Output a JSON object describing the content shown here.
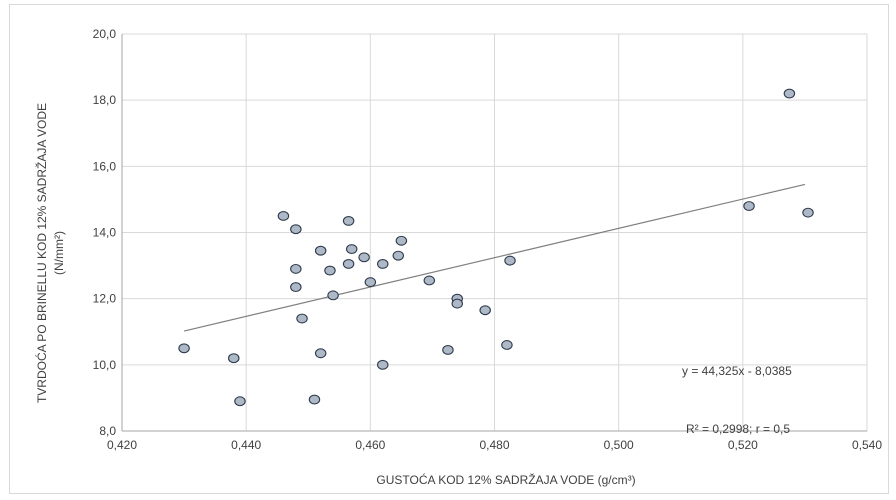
{
  "chart_data": {
    "type": "scatter",
    "xlabel": "GUSTOĆA KOD 12% SADRŽAJA VODE (g/cm³)",
    "ylabel": "TVRDOĆA PO BRINELLU KOD 12% SADRŽAJA VODE",
    "ylabel_unit": "(N/mm²)",
    "xlim": [
      0.42,
      0.54
    ],
    "ylim": [
      8.0,
      20.0
    ],
    "x_ticks": [
      0.42,
      0.44,
      0.46,
      0.48,
      0.5,
      0.52,
      0.54
    ],
    "x_tick_labels": [
      "0,420",
      "0,440",
      "0,460",
      "0,480",
      "0,500",
      "0,520",
      "0,540"
    ],
    "y_ticks": [
      8,
      10,
      12,
      14,
      16,
      18,
      20
    ],
    "y_tick_labels": [
      "8,0",
      "10,0",
      "12,0",
      "14,0",
      "16,0",
      "18,0",
      "20,0"
    ],
    "grid": true,
    "points": [
      {
        "x": 0.43,
        "y": 10.5
      },
      {
        "x": 0.438,
        "y": 10.2
      },
      {
        "x": 0.439,
        "y": 8.9
      },
      {
        "x": 0.446,
        "y": 14.5
      },
      {
        "x": 0.448,
        "y": 14.1
      },
      {
        "x": 0.448,
        "y": 12.9
      },
      {
        "x": 0.448,
        "y": 12.35
      },
      {
        "x": 0.449,
        "y": 11.4
      },
      {
        "x": 0.451,
        "y": 8.95
      },
      {
        "x": 0.452,
        "y": 13.45
      },
      {
        "x": 0.452,
        "y": 10.35
      },
      {
        "x": 0.4535,
        "y": 12.85
      },
      {
        "x": 0.454,
        "y": 12.1
      },
      {
        "x": 0.4565,
        "y": 14.35
      },
      {
        "x": 0.457,
        "y": 13.5
      },
      {
        "x": 0.4565,
        "y": 13.05
      },
      {
        "x": 0.459,
        "y": 13.25
      },
      {
        "x": 0.46,
        "y": 12.5
      },
      {
        "x": 0.462,
        "y": 13.05
      },
      {
        "x": 0.462,
        "y": 10.0
      },
      {
        "x": 0.4645,
        "y": 13.3
      },
      {
        "x": 0.465,
        "y": 13.75
      },
      {
        "x": 0.4695,
        "y": 12.55
      },
      {
        "x": 0.4725,
        "y": 10.45
      },
      {
        "x": 0.474,
        "y": 12.0
      },
      {
        "x": 0.474,
        "y": 11.85
      },
      {
        "x": 0.4785,
        "y": 11.65
      },
      {
        "x": 0.4825,
        "y": 13.15
      },
      {
        "x": 0.482,
        "y": 10.6
      },
      {
        "x": 0.521,
        "y": 14.8
      },
      {
        "x": 0.5275,
        "y": 18.2
      },
      {
        "x": 0.5305,
        "y": 14.6
      }
    ],
    "trendline": {
      "slope": 44.325,
      "intercept": -8.0385,
      "x_range": [
        0.43,
        0.53
      ]
    },
    "annotations": {
      "equation": "y = 44,325x - 8,0385",
      "r_squared": "R² = 0,2998; r = 0,5"
    }
  }
}
